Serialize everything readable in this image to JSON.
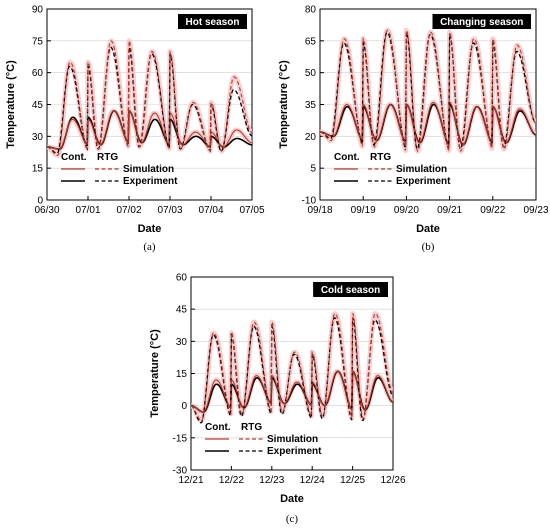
{
  "legend": {
    "col1": "Cont.",
    "col2": "RTG",
    "row1": "Simulation",
    "row2": "Experiment"
  },
  "colors": {
    "simulation": "#c0392b",
    "simulation_band": "#f4c4c4",
    "experiment": "#000000"
  },
  "chart_data": [
    {
      "type": "line",
      "panel_label": "(a)",
      "title": "Hot season",
      "xlabel": "Date",
      "ylabel": "Temperature (°C)",
      "ylim": [
        0,
        90
      ],
      "yticks": [
        0,
        15,
        30,
        45,
        60,
        75,
        90
      ],
      "xlim": [
        0,
        5
      ],
      "xtick_labels": [
        "06/30",
        "07/01",
        "07/02",
        "07/03",
        "07/04",
        "07/05"
      ],
      "start_value": 25,
      "daily": [
        {
          "rtg_sim": [
            21,
            65
          ],
          "rtg_exp": [
            22,
            63
          ],
          "cont_sim": [
            24,
            38
          ],
          "cont_exp": [
            24,
            39
          ]
        },
        {
          "rtg_sim": [
            24,
            75
          ],
          "rtg_exp": [
            24,
            72
          ],
          "cont_sim": [
            26,
            42
          ],
          "cont_exp": [
            26,
            42
          ]
        },
        {
          "rtg_sim": [
            25,
            70
          ],
          "rtg_exp": [
            25,
            69
          ],
          "cont_sim": [
            27,
            41
          ],
          "cont_exp": [
            27,
            38
          ]
        },
        {
          "rtg_sim": [
            24,
            46
          ],
          "rtg_exp": [
            24,
            45
          ],
          "cont_sim": [
            26,
            32
          ],
          "cont_exp": [
            26,
            30
          ]
        },
        {
          "rtg_sim": [
            23,
            58
          ],
          "rtg_exp": [
            23,
            52
          ],
          "cont_sim": [
            25,
            33
          ],
          "cont_exp": [
            25,
            29
          ]
        }
      ]
    },
    {
      "type": "line",
      "panel_label": "(b)",
      "title": "Changing season",
      "xlabel": "Date",
      "ylabel": "Temperature (°C)",
      "ylim": [
        -10,
        80
      ],
      "yticks": [
        -10,
        5,
        20,
        35,
        50,
        65,
        80
      ],
      "xlim": [
        0,
        5
      ],
      "xtick_labels": [
        "09/18",
        "09/19",
        "09/20",
        "09/21",
        "09/22",
        "09/23"
      ],
      "start_value": 22,
      "daily": [
        {
          "rtg_sim": [
            18,
            66
          ],
          "rtg_exp": [
            19,
            64
          ],
          "cont_sim": [
            20,
            35
          ],
          "cont_exp": [
            20,
            34
          ]
        },
        {
          "rtg_sim": [
            15,
            70
          ],
          "rtg_exp": [
            16,
            69
          ],
          "cont_sim": [
            18,
            35
          ],
          "cont_exp": [
            18,
            35
          ]
        },
        {
          "rtg_sim": [
            13,
            69
          ],
          "rtg_exp": [
            14,
            68
          ],
          "cont_sim": [
            17,
            36
          ],
          "cont_exp": [
            17,
            35
          ]
        },
        {
          "rtg_sim": [
            13,
            66
          ],
          "rtg_exp": [
            14,
            64
          ],
          "cont_sim": [
            16,
            34
          ],
          "cont_exp": [
            16,
            34
          ]
        },
        {
          "rtg_sim": [
            14,
            63
          ],
          "rtg_exp": [
            15,
            60
          ],
          "cont_sim": [
            17,
            33
          ],
          "cont_exp": [
            17,
            32
          ]
        }
      ]
    },
    {
      "type": "line",
      "panel_label": "(c)",
      "title": "Cold season",
      "xlabel": "Date",
      "ylabel": "Temperature (°C)",
      "ylim": [
        -30,
        60
      ],
      "yticks": [
        -30,
        -15,
        0,
        15,
        30,
        45,
        60
      ],
      "xlim": [
        0,
        5
      ],
      "xtick_labels": [
        "12/21",
        "12/22",
        "12/23",
        "12/24",
        "12/25",
        "12/26"
      ],
      "start_value": 0,
      "daily": [
        {
          "rtg_sim": [
            -7,
            34
          ],
          "rtg_exp": [
            -8,
            33
          ],
          "cont_sim": [
            -3,
            12
          ],
          "cont_exp": [
            -3,
            10
          ]
        },
        {
          "rtg_sim": [
            -4,
            39
          ],
          "rtg_exp": [
            -5,
            37
          ],
          "cont_sim": [
            -1,
            14
          ],
          "cont_exp": [
            -1,
            13
          ]
        },
        {
          "rtg_sim": [
            -3,
            25
          ],
          "rtg_exp": [
            -4,
            24
          ],
          "cont_sim": [
            1,
            11
          ],
          "cont_exp": [
            1,
            10
          ]
        },
        {
          "rtg_sim": [
            -5,
            43
          ],
          "rtg_exp": [
            -6,
            41
          ],
          "cont_sim": [
            0,
            16
          ],
          "cont_exp": [
            0,
            16
          ]
        },
        {
          "rtg_sim": [
            -6,
            43
          ],
          "rtg_exp": [
            -7,
            40
          ],
          "cont_sim": [
            -2,
            14
          ],
          "cont_exp": [
            -2,
            13
          ]
        }
      ]
    }
  ]
}
